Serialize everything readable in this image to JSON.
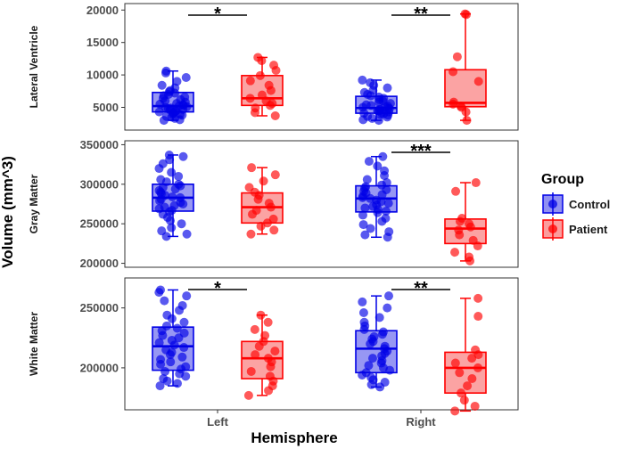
{
  "chart_data": {
    "type": "boxplot",
    "xlabel": "Hemisphere",
    "ylabel": "Volume (mm^3)",
    "categories": [
      "Left",
      "Right"
    ],
    "groups": [
      {
        "name": "Control",
        "line": "#0000e6",
        "fill": "#7d7df0"
      },
      {
        "name": "Patient",
        "line": "#ff0000",
        "fill": "#fa8c8c"
      }
    ],
    "legend": {
      "title": "Group",
      "entries": [
        "Control",
        "Patient"
      ],
      "position": "right"
    },
    "panels": [
      {
        "name": "lateral-ventricle",
        "label": "Lateral Ventricle",
        "ylim": [
          1500,
          21000
        ],
        "ticks": [
          5000,
          10000,
          15000,
          20000
        ],
        "tick_labels": [
          "5000",
          "10000",
          "15000",
          "20000"
        ],
        "boxes": {
          "Left": {
            "Control": {
              "min": 3000,
              "q1": 4300,
              "median": 5200,
              "q3": 7300,
              "max": 10600
            },
            "Patient": {
              "min": 3700,
              "q1": 5300,
              "median": 6400,
              "q3": 9900,
              "max": 12700
            }
          },
          "Right": {
            "Control": {
              "min": 3000,
              "q1": 4100,
              "median": 4900,
              "q3": 6700,
              "max": 9200
            },
            "Patient": {
              "min": 3000,
              "q1": 5100,
              "median": 5700,
              "q3": 10800,
              "max": 19400
            }
          }
        },
        "points": {
          "Left": {
            "Control": [
              3000,
              3100,
              3300,
              3500,
              3600,
              3800,
              3900,
              4000,
              4100,
              4200,
              4300,
              4400,
              4500,
              4600,
              4700,
              4800,
              4900,
              5000,
              5100,
              5200,
              5300,
              5400,
              5500,
              5600,
              5800,
              6000,
              6200,
              6400,
              6600,
              6800,
              7000,
              7200,
              7400,
              7600,
              8000,
              8400,
              9000,
              9600,
              10300,
              10600
            ],
            "Patient": [
              3700,
              4200,
              4900,
              5300,
              5600,
              6000,
              6400,
              6900,
              7600,
              8400,
              9100,
              9900,
              10700,
              11500,
              12200,
              12700
            ]
          },
          "Right": {
            "Control": [
              3000,
              3100,
              3300,
              3500,
              3600,
              3800,
              3900,
              4000,
              4100,
              4200,
              4300,
              4400,
              4500,
              4600,
              4700,
              4800,
              4900,
              5000,
              5100,
              5200,
              5300,
              5400,
              5600,
              5800,
              6000,
              6200,
              6400,
              6600,
              6800,
              7000,
              7300,
              7600,
              8000,
              8400,
              8800,
              9200
            ],
            "Patient": [
              3000,
              4300,
              5000,
              5200,
              5500,
              5800,
              9000,
              10500,
              12800,
              19300,
              19400
            ]
          }
        },
        "significance": [
          {
            "category": "Left",
            "label": "*"
          },
          {
            "category": "Right",
            "label": "**"
          }
        ]
      },
      {
        "name": "gray-matter",
        "label": "Gray Matter",
        "ylim": [
          195000,
          355000
        ],
        "ticks": [
          200000,
          250000,
          300000,
          350000
        ],
        "tick_labels": [
          "200000",
          "250000",
          "300000",
          "350000"
        ],
        "boxes": {
          "Left": {
            "Control": {
              "min": 234000,
              "q1": 266000,
              "median": 283000,
              "q3": 300000,
              "max": 337000
            },
            "Patient": {
              "min": 237000,
              "q1": 251000,
              "median": 271000,
              "q3": 289000,
              "max": 321000
            }
          },
          "Right": {
            "Control": {
              "min": 233000,
              "q1": 265000,
              "median": 282000,
              "q3": 298000,
              "max": 335000
            },
            "Patient": {
              "min": 203000,
              "q1": 225000,
              "median": 244000,
              "q3": 256000,
              "max": 302000
            }
          }
        },
        "points": {
          "Left": {
            "Control": [
              234000,
              237000,
              241000,
              245000,
              250000,
              254000,
              258000,
              262000,
              265000,
              267000,
              269000,
              271000,
              273000,
              275000,
              277000,
              279000,
              281000,
              283000,
              284000,
              286000,
              288000,
              290000,
              292000,
              294000,
              296000,
              298000,
              300000,
              303000,
              306000,
              310000,
              315000,
              320000,
              326000,
              331000,
              335000,
              337000
            ],
            "Patient": [
              237000,
              242000,
              247000,
              251000,
              256000,
              262000,
              267000,
              271000,
              276000,
              281000,
              286000,
              290000,
              296000,
              304000,
              312000,
              321000
            ]
          },
          "Right": {
            "Control": [
              233000,
              236000,
              240000,
              244000,
              249000,
              253000,
              257000,
              261000,
              264000,
              266000,
              268000,
              270000,
              272000,
              274000,
              276000,
              278000,
              280000,
              282000,
              283000,
              285000,
              287000,
              289000,
              291000,
              293000,
              295000,
              297000,
              299000,
              302000,
              306000,
              311000,
              317000,
              323000,
              329000,
              335000
            ],
            "Patient": [
              203000,
              208000,
              214000,
              222000,
              229000,
              236000,
              242000,
              246000,
              250000,
              253000,
              257000,
              291000,
              302000
            ]
          }
        },
        "significance": [
          {
            "category": "Right",
            "label": "***"
          }
        ]
      },
      {
        "name": "white-matter",
        "label": "White Matter",
        "ylim": [
          165000,
          275000
        ],
        "ticks": [
          200000,
          250000
        ],
        "tick_labels": [
          "200000",
          "250000"
        ],
        "boxes": {
          "Left": {
            "Control": {
              "min": 185000,
              "q1": 198000,
              "median": 218000,
              "q3": 234000,
              "max": 265000
            },
            "Patient": {
              "min": 177000,
              "q1": 191000,
              "median": 208000,
              "q3": 222000,
              "max": 244000
            }
          },
          "Right": {
            "Control": {
              "min": 184000,
              "q1": 196000,
              "median": 216000,
              "q3": 231000,
              "max": 260000
            },
            "Patient": {
              "min": 164000,
              "q1": 179000,
              "median": 200000,
              "q3": 213000,
              "max": 258000
            }
          }
        },
        "points": {
          "Left": {
            "Control": [
              185000,
              187000,
              189000,
              191000,
              193000,
              195000,
              197000,
              199000,
              201000,
              203000,
              205000,
              207000,
              209000,
              211000,
              213000,
              215000,
              217000,
              219000,
              221000,
              223000,
              225000,
              227000,
              229000,
              231000,
              233000,
              235000,
              238000,
              241000,
              244000,
              248000,
              252000,
              256000,
              260000,
              263000,
              265000
            ],
            "Patient": [
              177000,
              181000,
              185000,
              189000,
              193000,
              197000,
              201000,
              205000,
              208000,
              211000,
              214000,
              218000,
              222000,
              227000,
              232000,
              238000,
              244000
            ]
          },
          "Right": {
            "Control": [
              184000,
              186000,
              188000,
              190000,
              192000,
              194000,
              196000,
              198000,
              200000,
              202000,
              204000,
              206000,
              208000,
              210000,
              212000,
              214000,
              216000,
              218000,
              220000,
              222000,
              224000,
              226000,
              228000,
              230000,
              232000,
              235000,
              238000,
              242000,
              246000,
              250000,
              255000,
              260000
            ],
            "Patient": [
              164000,
              168000,
              173000,
              179000,
              185000,
              191000,
              196000,
              200000,
              204000,
              208000,
              211000,
              215000,
              243000,
              258000
            ]
          }
        },
        "significance": [
          {
            "category": "Left",
            "label": "*"
          },
          {
            "category": "Right",
            "label": "**"
          }
        ]
      }
    ]
  }
}
